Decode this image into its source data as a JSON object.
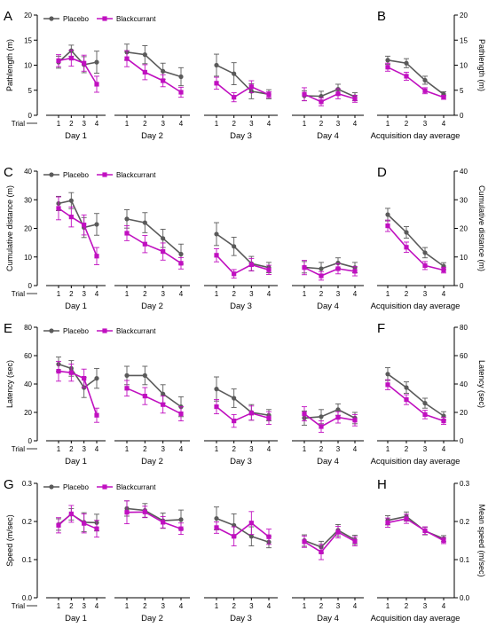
{
  "colors": {
    "placebo": "#5a5a5a",
    "blackcurrant": "#c010c0",
    "axis": "#000000"
  },
  "legend": {
    "placebo": "Placebo",
    "blackcurrant": "Blackcurrant"
  },
  "trial_label": "Trial",
  "trial_ticks": [
    "1",
    "2",
    "3",
    "4"
  ],
  "day_labels": [
    "Day 1",
    "Day 2",
    "Day 3",
    "Day 4"
  ],
  "avg_label": "Acquisition day average",
  "chart_data": [
    {
      "letter": "A",
      "type": "line",
      "ylabel": "Pathlength (m)",
      "ylim": [
        0,
        20
      ],
      "yticks": [
        "0",
        "5",
        "10",
        "15",
        "20"
      ],
      "days": [
        {
          "placebo": [
            [
              10.6,
              1.2
            ],
            [
              12.9,
              1.1
            ],
            [
              10.1,
              1.6
            ],
            [
              10.6,
              2.2
            ]
          ],
          "blackcurrant": [
            [
              10.9,
              1.2
            ],
            [
              11.4,
              1.6
            ],
            [
              10.4,
              1.6
            ],
            [
              6.2,
              1.6
            ]
          ]
        },
        {
          "placebo": [
            [
              12.6,
              1.6
            ],
            [
              12.1,
              1.8
            ],
            [
              8.8,
              1.6
            ],
            [
              7.7,
              1.8
            ]
          ],
          "blackcurrant": [
            [
              11.3,
              1.6
            ],
            [
              8.6,
              1.5
            ],
            [
              6.9,
              1.2
            ],
            [
              4.6,
              1.0
            ]
          ]
        },
        {
          "placebo": [
            [
              10.0,
              2.2
            ],
            [
              8.3,
              2.2
            ],
            [
              4.8,
              1.5
            ],
            [
              4.2,
              0.9
            ]
          ],
          "blackcurrant": [
            [
              6.4,
              1.2
            ],
            [
              3.6,
              0.9
            ],
            [
              5.7,
              1.2
            ],
            [
              4.1,
              0.6
            ]
          ]
        },
        {
          "placebo": [
            [
              3.9,
              1.0
            ],
            [
              3.8,
              1.0
            ],
            [
              5.2,
              1.0
            ],
            [
              3.7,
              0.8
            ]
          ],
          "blackcurrant": [
            [
              4.2,
              1.3
            ],
            [
              2.7,
              0.8
            ],
            [
              4.3,
              1.0
            ],
            [
              3.3,
              0.7
            ]
          ]
        }
      ],
      "avg": {
        "ylabel": "Pathlength (m)",
        "ylim": [
          0,
          20
        ],
        "yticks": [
          "0",
          "5",
          "10",
          "15",
          "20"
        ],
        "placebo": [
          [
            11.0,
            0.8
          ],
          [
            10.4,
            0.9
          ],
          [
            7.0,
            0.8
          ],
          [
            4.2,
            0.5
          ]
        ],
        "blackcurrant": [
          [
            9.6,
            0.8
          ],
          [
            7.8,
            0.8
          ],
          [
            4.9,
            0.6
          ],
          [
            3.6,
            0.4
          ]
        ]
      }
    },
    {
      "letter": "C",
      "type": "line",
      "ylabel": "Cumulative distance (m)",
      "ylim": [
        0,
        40
      ],
      "yticks": [
        "0",
        "10",
        "20",
        "30",
        "40"
      ],
      "days": [
        {
          "placebo": [
            [
              28.7,
              2.5
            ],
            [
              29.7,
              2.8
            ],
            [
              20.3,
              3.5
            ],
            [
              21.4,
              3.8
            ]
          ],
          "blackcurrant": [
            [
              27.0,
              4.0
            ],
            [
              24.0,
              3.5
            ],
            [
              21.2,
              3.5
            ],
            [
              10.3,
              3.0
            ]
          ]
        },
        {
          "placebo": [
            [
              23.3,
              3.2
            ],
            [
              22.0,
              3.5
            ],
            [
              16.5,
              3.2
            ],
            [
              11.0,
              3.5
            ]
          ],
          "blackcurrant": [
            [
              18.3,
              2.6
            ],
            [
              14.5,
              3.0
            ],
            [
              11.9,
              3.0
            ],
            [
              7.8,
              2.0
            ]
          ]
        },
        {
          "placebo": [
            [
              18.0,
              4.0
            ],
            [
              13.7,
              3.2
            ],
            [
              7.7,
              2.5
            ],
            [
              6.3,
              1.8
            ]
          ],
          "blackcurrant": [
            [
              10.6,
              2.3
            ],
            [
              4.1,
              1.5
            ],
            [
              7.3,
              2.2
            ],
            [
              5.5,
              1.6
            ]
          ]
        },
        {
          "placebo": [
            [
              6.4,
              2.0
            ],
            [
              5.9,
              2.2
            ],
            [
              7.9,
              1.8
            ],
            [
              6.3,
              1.8
            ]
          ],
          "blackcurrant": [
            [
              6.3,
              2.5
            ],
            [
              3.4,
              1.5
            ],
            [
              5.9,
              1.8
            ],
            [
              5.0,
              1.6
            ]
          ]
        }
      ],
      "avg": {
        "ylabel": "Cumulative distance (m)",
        "ylim": [
          0,
          40
        ],
        "yticks": [
          "0",
          "10",
          "20",
          "30",
          "40"
        ],
        "placebo": [
          [
            24.8,
            2.2
          ],
          [
            18.6,
            2.0
          ],
          [
            11.5,
            1.8
          ],
          [
            6.8,
            1.2
          ]
        ],
        "blackcurrant": [
          [
            20.9,
            2.0
          ],
          [
            13.4,
            1.8
          ],
          [
            7.0,
            1.4
          ],
          [
            5.4,
            1.0
          ]
        ]
      }
    },
    {
      "letter": "E",
      "type": "line",
      "ylabel": "Latency (sec)",
      "ylim": [
        0,
        80
      ],
      "yticks": [
        "0",
        "20",
        "40",
        "60",
        "80"
      ],
      "days": [
        {
          "placebo": [
            [
              54.0,
              5.0
            ],
            [
              51.0,
              5.5
            ],
            [
              37.5,
              7.0
            ],
            [
              44.0,
              7.0
            ]
          ],
          "blackcurrant": [
            [
              49.0,
              7.0
            ],
            [
              48.0,
              6.0
            ],
            [
              44.0,
              6.5
            ],
            [
              18.0,
              5.0
            ]
          ]
        },
        {
          "placebo": [
            [
              46.0,
              6.5
            ],
            [
              46.0,
              6.5
            ],
            [
              33.0,
              6.5
            ],
            [
              24.0,
              7.0
            ]
          ],
          "blackcurrant": [
            [
              37.0,
              5.5
            ],
            [
              31.5,
              6.0
            ],
            [
              25.5,
              6.0
            ],
            [
              19.0,
              5.0
            ]
          ]
        },
        {
          "placebo": [
            [
              36.5,
              8.5
            ],
            [
              30.0,
              6.5
            ],
            [
              20.0,
              5.5
            ],
            [
              18.0,
              4.0
            ]
          ],
          "blackcurrant": [
            [
              24.0,
              5.0
            ],
            [
              14.0,
              4.5
            ],
            [
              19.5,
              5.0
            ],
            [
              16.0,
              4.5
            ]
          ]
        },
        {
          "placebo": [
            [
              16.0,
              5.0
            ],
            [
              17.0,
              5.0
            ],
            [
              22.0,
              4.0
            ],
            [
              16.0,
              4.0
            ]
          ],
          "blackcurrant": [
            [
              19.0,
              5.0
            ],
            [
              10.0,
              4.0
            ],
            [
              16.5,
              4.0
            ],
            [
              14.5,
              4.0
            ]
          ]
        }
      ],
      "avg": {
        "ylabel": "Latency (sec)",
        "ylim": [
          0,
          80
        ],
        "yticks": [
          "0",
          "20",
          "40",
          "60",
          "80"
        ],
        "placebo": [
          [
            47.0,
            4.5
          ],
          [
            37.5,
            4.0
          ],
          [
            26.5,
            3.5
          ],
          [
            17.5,
            3.0
          ]
        ],
        "blackcurrant": [
          [
            39.5,
            3.5
          ],
          [
            29.0,
            3.5
          ],
          [
            18.5,
            3.0
          ],
          [
            14.0,
            2.5
          ]
        ]
      }
    },
    {
      "letter": "G",
      "type": "line",
      "ylabel": "Speed (m/sec)",
      "ylim": [
        0,
        0.3
      ],
      "yticks": [
        "0.0",
        "0.1",
        "0.2",
        "0.3"
      ],
      "days": [
        {
          "placebo": [
            [
              0.192,
              0.015
            ],
            [
              0.219,
              0.015
            ],
            [
              0.198,
              0.025
            ],
            [
              0.197,
              0.022
            ]
          ],
          "blackcurrant": [
            [
              0.19,
              0.02
            ],
            [
              0.22,
              0.022
            ],
            [
              0.195,
              0.025
            ],
            [
              0.181,
              0.022
            ]
          ]
        },
        {
          "placebo": [
            [
              0.234,
              0.02
            ],
            [
              0.229,
              0.018
            ],
            [
              0.202,
              0.02
            ],
            [
              0.205,
              0.025
            ]
          ],
          "blackcurrant": [
            [
              0.224,
              0.03
            ],
            [
              0.225,
              0.015
            ],
            [
              0.198,
              0.015
            ],
            [
              0.181,
              0.015
            ]
          ]
        },
        {
          "placebo": [
            [
              0.208,
              0.03
            ],
            [
              0.19,
              0.03
            ],
            [
              0.161,
              0.025
            ],
            [
              0.146,
              0.015
            ]
          ],
          "blackcurrant": [
            [
              0.184,
              0.015
            ],
            [
              0.161,
              0.025
            ],
            [
              0.196,
              0.03
            ],
            [
              0.16,
              0.02
            ]
          ]
        },
        {
          "placebo": [
            [
              0.15,
              0.015
            ],
            [
              0.133,
              0.015
            ],
            [
              0.177,
              0.015
            ],
            [
              0.152,
              0.012
            ]
          ],
          "blackcurrant": [
            [
              0.147,
              0.015
            ],
            [
              0.12,
              0.02
            ],
            [
              0.172,
              0.015
            ],
            [
              0.148,
              0.012
            ]
          ]
        }
      ],
      "avg": {
        "ylabel": "Mean speed (m/sec)",
        "ylim": [
          0,
          0.3
        ],
        "yticks": [
          "0.0",
          "0.1",
          "0.2",
          "0.3"
        ],
        "placebo": [
          [
            0.203,
            0.012
          ],
          [
            0.213,
            0.012
          ],
          [
            0.175,
            0.01
          ],
          [
            0.155,
            0.008
          ]
        ],
        "blackcurrant": [
          [
            0.197,
            0.012
          ],
          [
            0.207,
            0.012
          ],
          [
            0.176,
            0.01
          ],
          [
            0.15,
            0.008
          ]
        ]
      }
    }
  ],
  "avg_letters": [
    "B",
    "D",
    "F",
    "H"
  ]
}
